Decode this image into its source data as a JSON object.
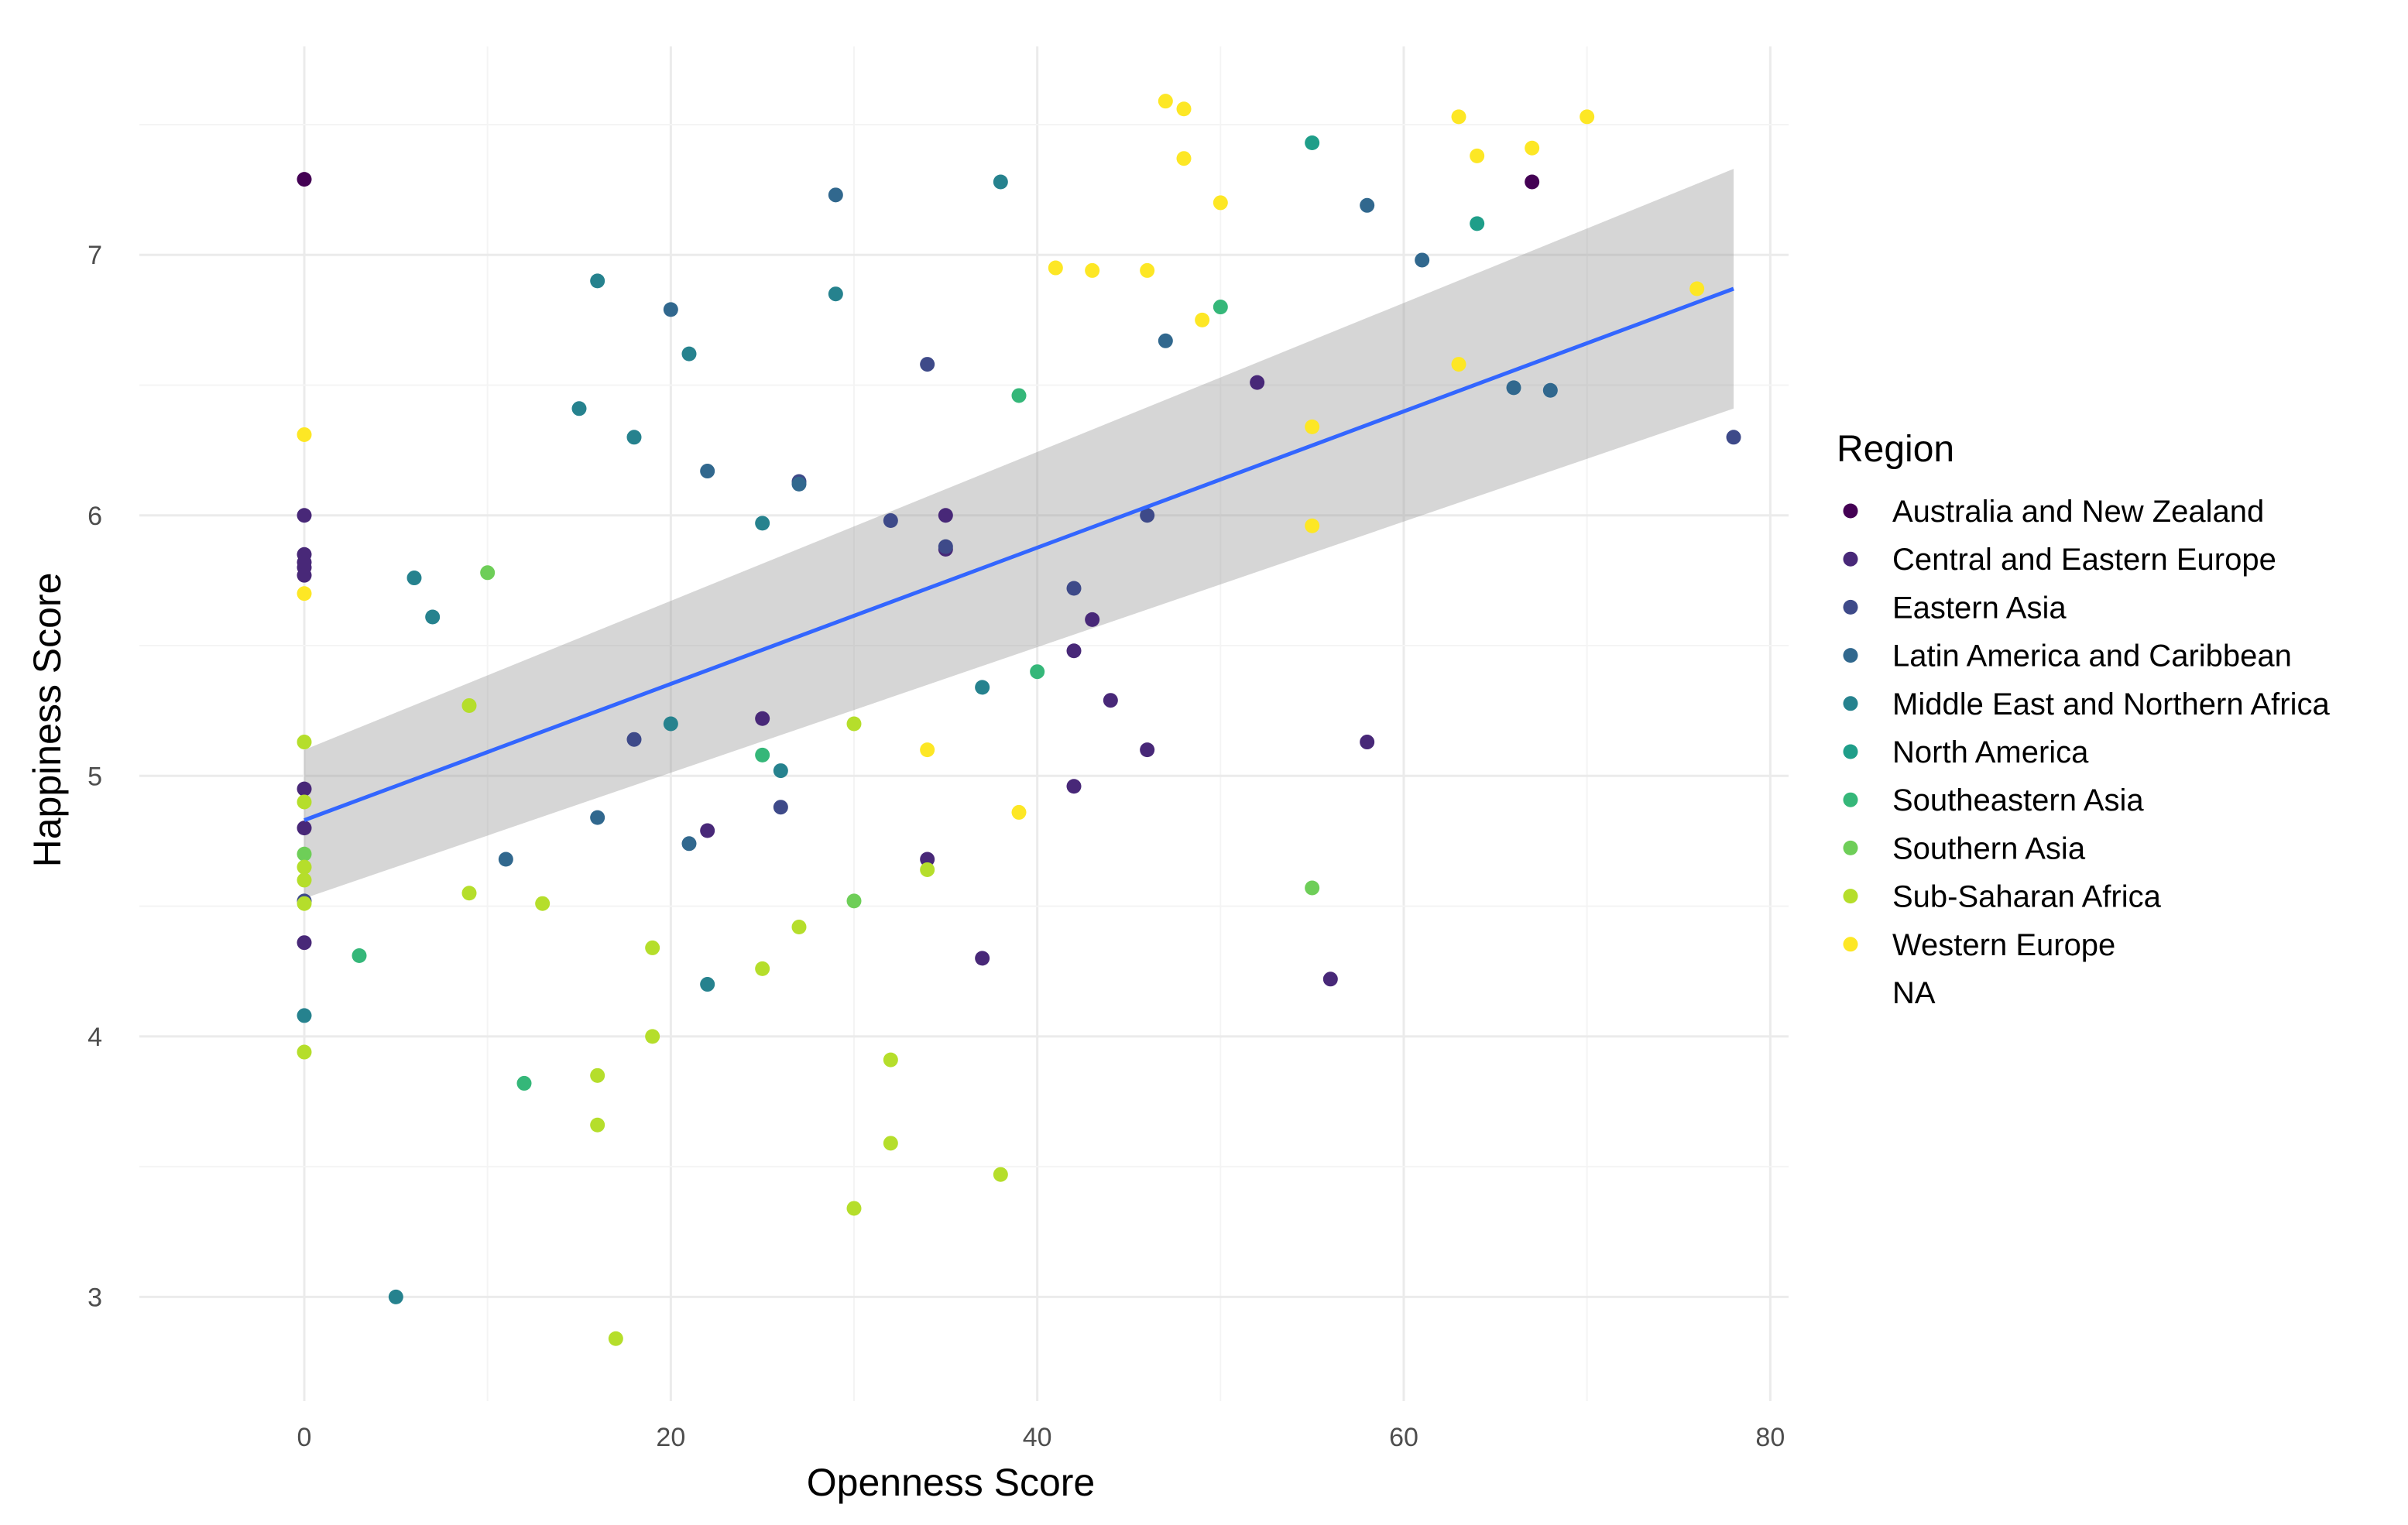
{
  "chart_data": {
    "type": "scatter",
    "title": "",
    "xlabel": "Openness Score",
    "ylabel": "Happiness Score",
    "xlim": [
      -9,
      81
    ],
    "ylim": [
      2.6,
      7.8
    ],
    "xticks": [
      0,
      20,
      40,
      60,
      80
    ],
    "yticks": [
      3,
      4,
      5,
      6,
      7
    ],
    "grid": true,
    "legend": {
      "title": "Region",
      "position": "right",
      "entries": [
        {
          "label": "Australia and New Zealand",
          "color": "#440154"
        },
        {
          "label": "Central and Eastern Europe",
          "color": "#482878"
        },
        {
          "label": "Eastern Asia",
          "color": "#3e4a89"
        },
        {
          "label": "Latin America and Caribbean",
          "color": "#31688e"
        },
        {
          "label": "Middle East and Northern Africa",
          "color": "#26828e"
        },
        {
          "label": "North America",
          "color": "#1f9e89"
        },
        {
          "label": "Southeastern Asia",
          "color": "#35b779"
        },
        {
          "label": "Southern Asia",
          "color": "#6ece58"
        },
        {
          "label": "Sub-Saharan Africa",
          "color": "#b5de2b"
        },
        {
          "label": "Western Europe",
          "color": "#fde725"
        },
        {
          "label": "NA",
          "color": null
        }
      ]
    },
    "trend_line": {
      "method": "lm",
      "color": "#3366ff",
      "x": [
        0,
        78
      ],
      "y": [
        4.83,
        6.87
      ],
      "band_lower": [
        4.53,
        6.41
      ],
      "band_upper": [
        5.1,
        7.33
      ]
    },
    "series": [
      {
        "name": "Australia and New Zealand",
        "points": [
          [
            0,
            7.29
          ],
          [
            67,
            7.28
          ]
        ]
      },
      {
        "name": "Central and Eastern Europe",
        "points": [
          [
            0,
            6.0
          ],
          [
            0,
            5.85
          ],
          [
            0,
            5.82
          ],
          [
            0,
            5.8
          ],
          [
            0,
            5.77
          ],
          [
            0,
            4.95
          ],
          [
            0,
            4.8
          ],
          [
            0,
            4.36
          ],
          [
            22,
            4.79
          ],
          [
            25,
            5.22
          ],
          [
            34,
            4.68
          ],
          [
            35,
            6.0
          ],
          [
            35,
            5.87
          ],
          [
            37,
            4.3
          ],
          [
            42,
            5.48
          ],
          [
            42,
            4.96
          ],
          [
            43,
            5.6
          ],
          [
            44,
            5.29
          ],
          [
            46,
            5.1
          ],
          [
            52,
            6.51
          ],
          [
            56,
            4.22
          ],
          [
            58,
            5.13
          ]
        ]
      },
      {
        "name": "Eastern Asia",
        "points": [
          [
            0,
            4.52
          ],
          [
            18,
            5.14
          ],
          [
            26,
            4.88
          ],
          [
            27,
            6.13
          ],
          [
            32,
            5.98
          ],
          [
            34,
            6.58
          ],
          [
            35,
            5.88
          ],
          [
            42,
            5.72
          ],
          [
            46,
            6.0
          ],
          [
            78,
            6.3
          ]
        ]
      },
      {
        "name": "Latin America and Caribbean",
        "points": [
          [
            11,
            4.68
          ],
          [
            16,
            4.84
          ],
          [
            20,
            6.79
          ],
          [
            21,
            4.74
          ],
          [
            22,
            6.17
          ],
          [
            27,
            6.12
          ],
          [
            29,
            7.23
          ],
          [
            47,
            6.67
          ],
          [
            58,
            7.19
          ],
          [
            61,
            6.98
          ],
          [
            66,
            6.49
          ],
          [
            68,
            6.48
          ]
        ]
      },
      {
        "name": "Middle East and Northern Africa",
        "points": [
          [
            0,
            4.08
          ],
          [
            5,
            3.0
          ],
          [
            6,
            5.76
          ],
          [
            7,
            5.61
          ],
          [
            15,
            6.41
          ],
          [
            16,
            6.9
          ],
          [
            18,
            6.3
          ],
          [
            20,
            5.2
          ],
          [
            21,
            6.62
          ],
          [
            22,
            4.2
          ],
          [
            25,
            5.97
          ],
          [
            26,
            5.02
          ],
          [
            29,
            6.85
          ],
          [
            37,
            5.34
          ],
          [
            38,
            7.28
          ]
        ]
      },
      {
        "name": "North America",
        "points": [
          [
            55,
            7.43
          ],
          [
            64,
            7.12
          ]
        ]
      },
      {
        "name": "Southeastern Asia",
        "points": [
          [
            3,
            4.31
          ],
          [
            12,
            3.82
          ],
          [
            25,
            5.08
          ],
          [
            39,
            6.46
          ],
          [
            40,
            5.4
          ],
          [
            50,
            6.8
          ]
        ]
      },
      {
        "name": "Southern Asia",
        "points": [
          [
            0,
            4.7
          ],
          [
            10,
            5.78
          ],
          [
            30,
            4.52
          ],
          [
            55,
            4.57
          ]
        ]
      },
      {
        "name": "Sub-Saharan Africa",
        "points": [
          [
            0,
            5.13
          ],
          [
            0,
            4.9
          ],
          [
            0,
            4.65
          ],
          [
            0,
            4.6
          ],
          [
            0,
            4.51
          ],
          [
            0,
            3.94
          ],
          [
            9,
            5.27
          ],
          [
            9,
            4.55
          ],
          [
            13,
            4.51
          ],
          [
            16,
            3.85
          ],
          [
            16,
            3.66
          ],
          [
            17,
            2.84
          ],
          [
            19,
            4.34
          ],
          [
            19,
            4.0
          ],
          [
            25,
            4.26
          ],
          [
            27,
            4.42
          ],
          [
            30,
            5.2
          ],
          [
            30,
            3.34
          ],
          [
            32,
            3.91
          ],
          [
            32,
            3.59
          ],
          [
            34,
            4.64
          ],
          [
            38,
            3.47
          ]
        ]
      },
      {
        "name": "Western Europe",
        "points": [
          [
            0,
            6.31
          ],
          [
            0,
            5.7
          ],
          [
            34,
            5.1
          ],
          [
            39,
            4.86
          ],
          [
            41,
            6.95
          ],
          [
            43,
            6.94
          ],
          [
            46,
            6.94
          ],
          [
            47,
            7.59
          ],
          [
            48,
            7.56
          ],
          [
            48,
            7.37
          ],
          [
            49,
            6.75
          ],
          [
            50,
            7.2
          ],
          [
            55,
            6.34
          ],
          [
            55,
            5.96
          ],
          [
            63,
            7.53
          ],
          [
            63,
            6.58
          ],
          [
            64,
            7.38
          ],
          [
            67,
            7.41
          ],
          [
            70,
            7.53
          ],
          [
            76,
            6.87
          ]
        ]
      }
    ]
  }
}
